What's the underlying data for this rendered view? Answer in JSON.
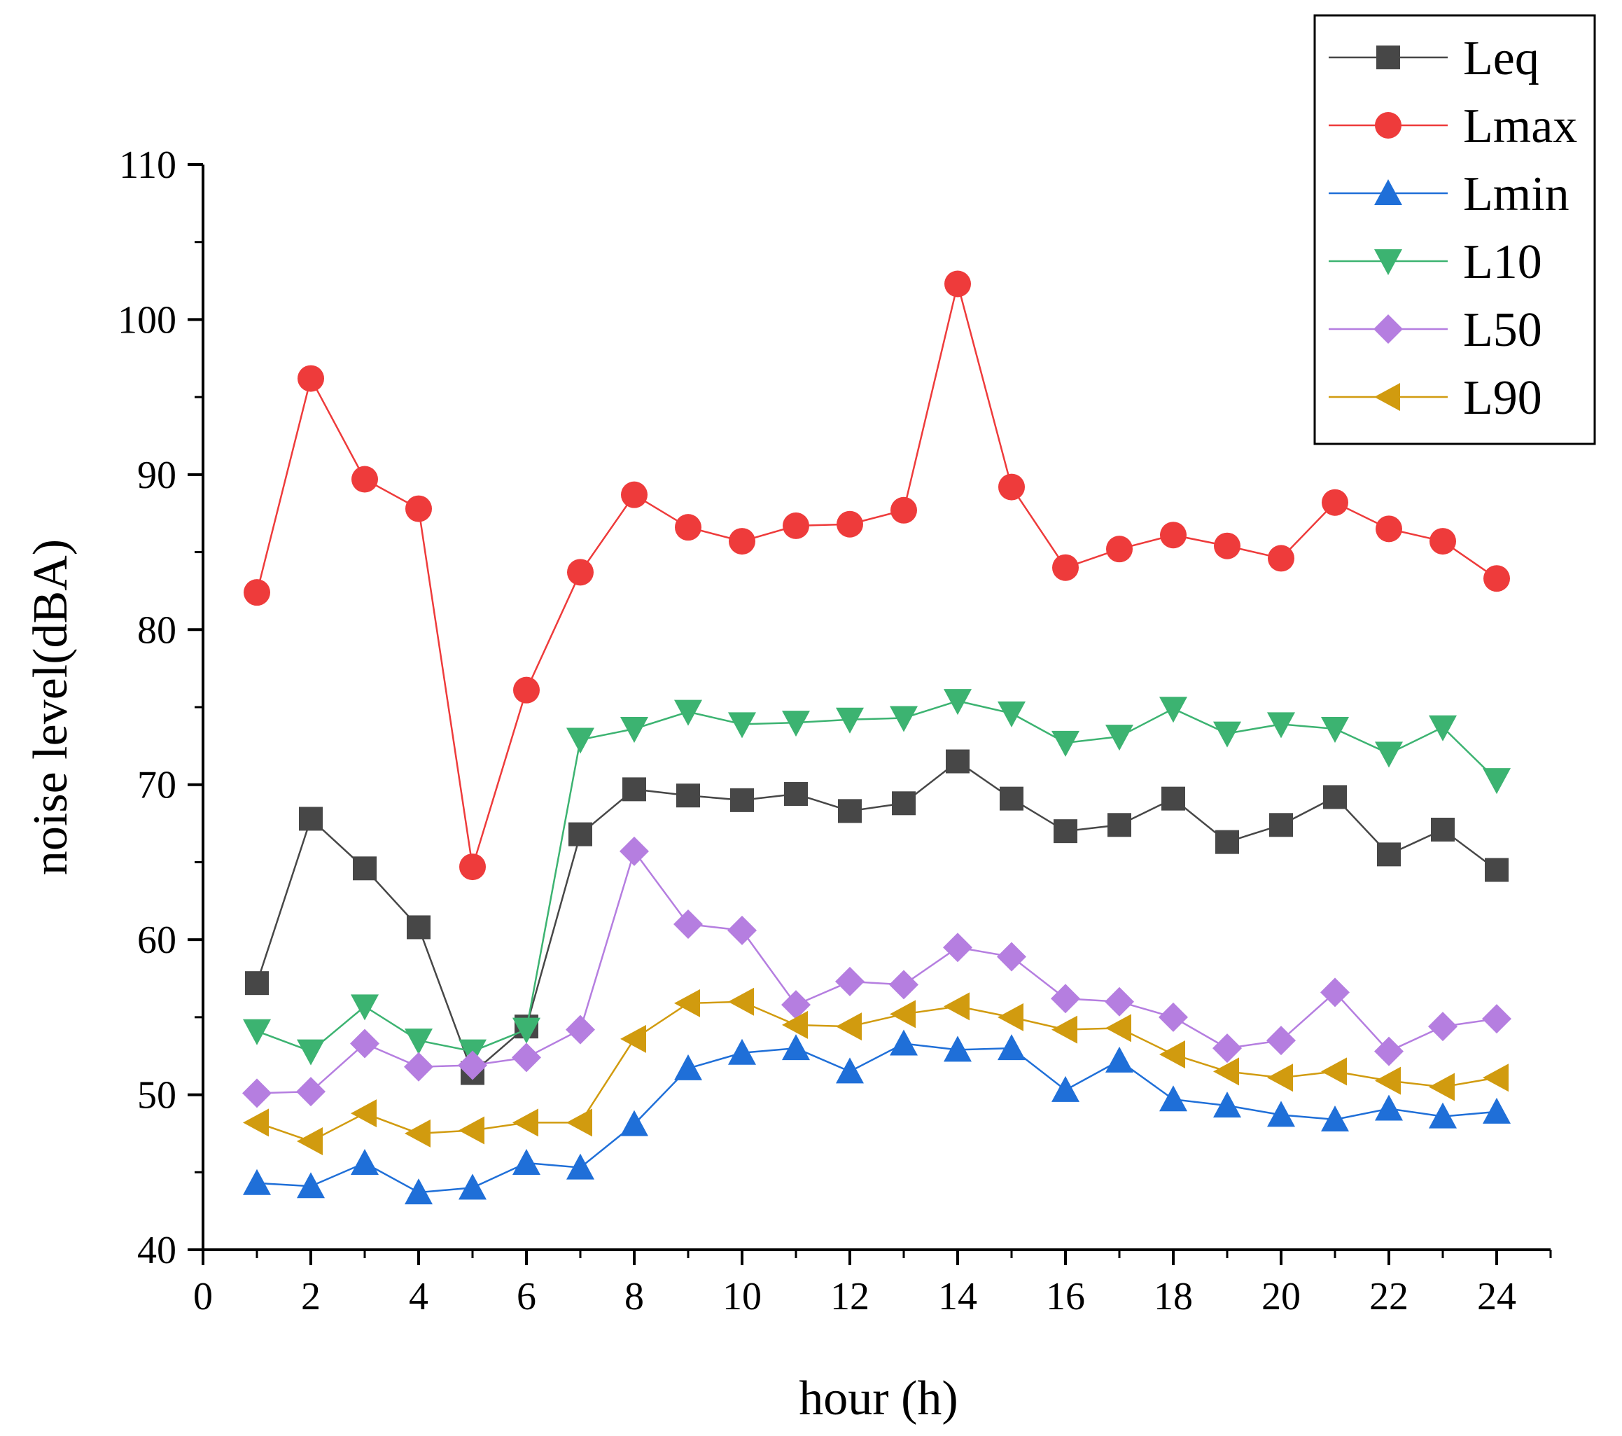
{
  "chart_data": {
    "type": "line",
    "title": "",
    "xlabel": "hour (h)",
    "ylabel": "noise level(dBA)",
    "xlim": [
      0,
      25
    ],
    "ylim": [
      40,
      110
    ],
    "xticks": [
      0,
      2,
      4,
      6,
      8,
      10,
      12,
      14,
      16,
      18,
      20,
      22,
      24
    ],
    "yticks": [
      40,
      50,
      60,
      70,
      80,
      90,
      100,
      110
    ],
    "xtick_labels": [
      "0",
      "2",
      "4",
      "6",
      "8",
      "10",
      "12",
      "14",
      "16",
      "18",
      "20",
      "22",
      "24"
    ],
    "ytick_labels": [
      "40",
      "50",
      "60",
      "70",
      "80",
      "90",
      "100",
      "110"
    ],
    "grid": false,
    "legend_position": "top-right",
    "x": [
      1,
      2,
      3,
      4,
      5,
      6,
      7,
      8,
      9,
      10,
      11,
      12,
      13,
      14,
      15,
      16,
      17,
      18,
      19,
      20,
      21,
      22,
      23,
      24
    ],
    "series": [
      {
        "name": "Leq",
        "color": "#474747",
        "marker": "square",
        "values": [
          57.2,
          67.8,
          64.6,
          60.8,
          51.4,
          54.4,
          66.8,
          69.7,
          69.3,
          69.0,
          69.4,
          68.3,
          68.8,
          71.5,
          69.1,
          67.0,
          67.4,
          69.1,
          66.3,
          67.4,
          69.2,
          65.5,
          67.1,
          64.5
        ]
      },
      {
        "name": "Lmax",
        "color": "#ee3b3b",
        "marker": "circle",
        "values": [
          82.4,
          96.2,
          89.7,
          87.8,
          64.7,
          76.1,
          83.7,
          88.7,
          86.6,
          85.7,
          86.7,
          86.8,
          87.7,
          102.3,
          89.2,
          84.0,
          85.2,
          86.1,
          85.4,
          84.6,
          88.2,
          86.5,
          85.7,
          83.3
        ]
      },
      {
        "name": "Lmin",
        "color": "#1f6fd8",
        "marker": "triangle-up",
        "values": [
          44.3,
          44.1,
          45.6,
          43.7,
          44.0,
          45.6,
          45.3,
          48.1,
          51.7,
          52.7,
          53.0,
          51.5,
          53.3,
          52.9,
          53.0,
          50.3,
          52.2,
          49.7,
          49.3,
          48.7,
          48.4,
          49.1,
          48.6,
          48.9
        ]
      },
      {
        "name": "L10",
        "color": "#3cb371",
        "marker": "triangle-down",
        "values": [
          54.1,
          52.8,
          55.7,
          53.5,
          52.8,
          54.2,
          72.9,
          73.6,
          74.7,
          73.9,
          74.0,
          74.2,
          74.3,
          75.4,
          74.6,
          72.7,
          73.1,
          74.9,
          73.3,
          73.9,
          73.6,
          72.0,
          73.7,
          70.3
        ]
      },
      {
        "name": "L50",
        "color": "#b57ee0",
        "marker": "diamond",
        "values": [
          50.1,
          50.2,
          53.3,
          51.8,
          51.9,
          52.4,
          54.2,
          65.7,
          61.0,
          60.6,
          55.8,
          57.3,
          57.1,
          59.5,
          58.9,
          56.2,
          56.0,
          55.0,
          53.0,
          53.5,
          56.6,
          52.8,
          54.4,
          54.9
        ]
      },
      {
        "name": "L90",
        "color": "#d19b0f",
        "marker": "triangle-left",
        "values": [
          48.2,
          47.0,
          48.8,
          47.5,
          47.7,
          48.2,
          48.2,
          53.6,
          55.9,
          56.0,
          54.5,
          54.4,
          55.2,
          55.7,
          55.0,
          54.2,
          54.3,
          52.6,
          51.5,
          51.1,
          51.5,
          50.9,
          50.5,
          51.1
        ]
      }
    ]
  }
}
